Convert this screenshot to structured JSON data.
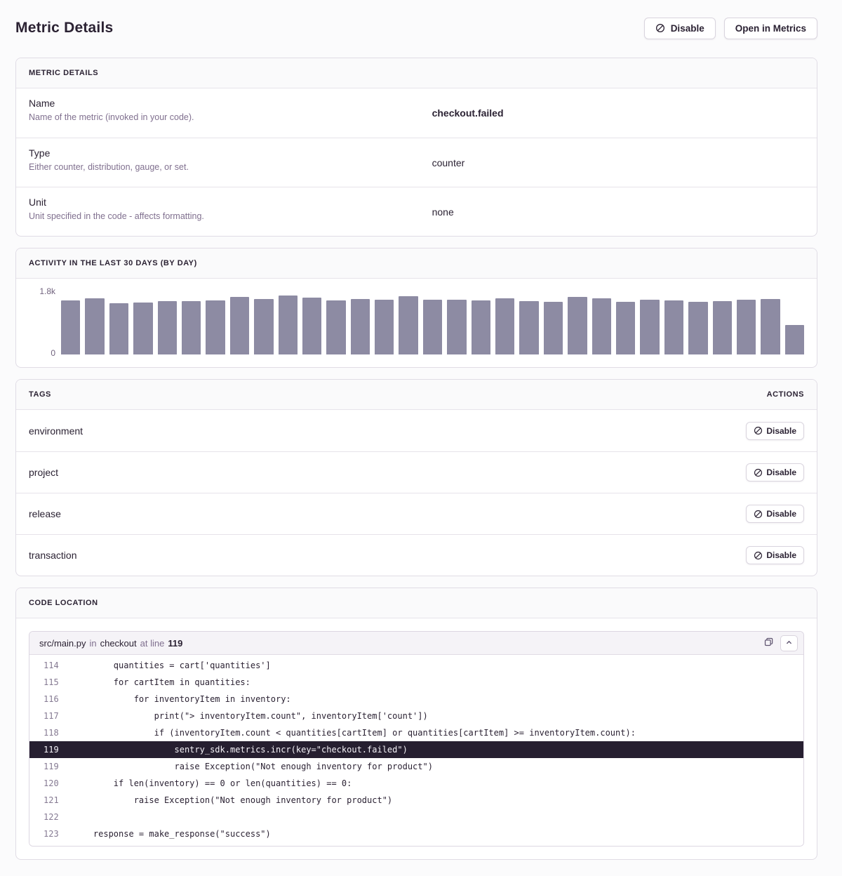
{
  "page": {
    "title": "Metric Details"
  },
  "header": {
    "disable_button": "Disable",
    "open_button": "Open in Metrics"
  },
  "details_panel": {
    "header": "METRIC DETAILS",
    "rows": [
      {
        "label": "Name",
        "description": "Name of the metric (invoked in your code).",
        "value": "checkout.failed",
        "bold": true
      },
      {
        "label": "Type",
        "description": "Either counter, distribution, gauge, or set.",
        "value": "counter",
        "bold": false
      },
      {
        "label": "Unit",
        "description": "Unit specified in the code - affects formatting.",
        "value": "none",
        "bold": false
      }
    ]
  },
  "activity_panel": {
    "header": "ACTIVITY IN THE LAST 30 DAYS (BY DAY)"
  },
  "chart_data": {
    "type": "bar",
    "title": "Activity in the last 30 days (by day)",
    "xlabel": "",
    "ylabel": "",
    "ylim": [
      0,
      1800
    ],
    "grid": false,
    "legend": false,
    "y_axis_labels": [
      "1.8k",
      "0"
    ],
    "bar_color": "#8d8ba3",
    "values": [
      1520,
      1580,
      1440,
      1465,
      1500,
      1500,
      1520,
      1620,
      1560,
      1660,
      1600,
      1520,
      1560,
      1540,
      1640,
      1540,
      1540,
      1520,
      1580,
      1500,
      1480,
      1620,
      1580,
      1480,
      1540,
      1520,
      1480,
      1500,
      1540,
      1560,
      830
    ]
  },
  "tags_panel": {
    "header": "TAGS",
    "actions_header": "ACTIONS",
    "disable_label": "Disable",
    "tags": [
      "environment",
      "project",
      "release",
      "transaction"
    ]
  },
  "code_panel": {
    "header": "CODE LOCATION",
    "file": "src/main.py",
    "in_word": "in",
    "function": "checkout",
    "at_line_word": "at line",
    "line_number": "119",
    "lines": [
      {
        "num": "114",
        "text": "        quantities = cart['quantities']",
        "highlight": false
      },
      {
        "num": "115",
        "text": "        for cartItem in quantities:",
        "highlight": false
      },
      {
        "num": "116",
        "text": "            for inventoryItem in inventory:",
        "highlight": false
      },
      {
        "num": "117",
        "text": "                print(\"> inventoryItem.count\", inventoryItem['count'])",
        "highlight": false
      },
      {
        "num": "118",
        "text": "                if (inventoryItem.count < quantities[cartItem] or quantities[cartItem] >= inventoryItem.count):",
        "highlight": false
      },
      {
        "num": "119",
        "text": "                    sentry_sdk.metrics.incr(key=\"checkout.failed\")",
        "highlight": true
      },
      {
        "num": "119",
        "text": "                    raise Exception(\"Not enough inventory for product\")",
        "highlight": false
      },
      {
        "num": "120",
        "text": "        if len(inventory) == 0 or len(quantities) == 0:",
        "highlight": false
      },
      {
        "num": "121",
        "text": "            raise Exception(\"Not enough inventory for product\")",
        "highlight": false
      },
      {
        "num": "122",
        "text": "",
        "highlight": false
      },
      {
        "num": "123",
        "text": "    response = make_response(\"success\")",
        "highlight": false
      }
    ]
  }
}
